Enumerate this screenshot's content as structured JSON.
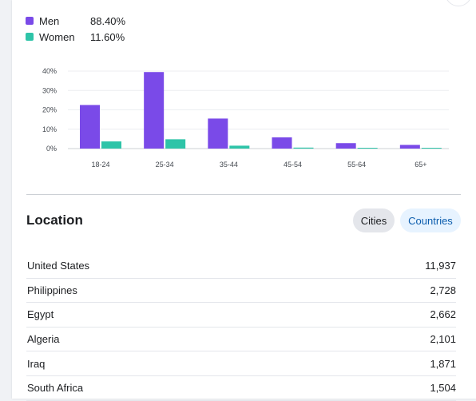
{
  "legend": {
    "items": [
      {
        "label": "Men",
        "value": "88.40%",
        "color": "#7a4ae8"
      },
      {
        "label": "Women",
        "value": "11.60%",
        "color": "#2ec4a8"
      }
    ]
  },
  "chart_data": {
    "type": "bar",
    "categories": [
      "18-24",
      "25-34",
      "35-44",
      "45-54",
      "55-64",
      "65+"
    ],
    "series": [
      {
        "name": "Men",
        "values": [
          22.5,
          39.5,
          15.5,
          5.8,
          2.8,
          1.9
        ],
        "color": "#7a4ae8"
      },
      {
        "name": "Women",
        "values": [
          3.7,
          4.8,
          1.5,
          0.5,
          0.3,
          0.3
        ],
        "color": "#2ec4a8"
      }
    ],
    "yticks": [
      "0%",
      "10%",
      "20%",
      "30%",
      "40%"
    ],
    "ylim": [
      0,
      40
    ],
    "grid": true,
    "xlabel": "",
    "ylabel": ""
  },
  "location": {
    "title": "Location",
    "cities_label": "Cities",
    "countries_label": "Countries",
    "rows": [
      {
        "name": "United States",
        "value": "11,937"
      },
      {
        "name": "Philippines",
        "value": "2,728"
      },
      {
        "name": "Egypt",
        "value": "2,662"
      },
      {
        "name": "Algeria",
        "value": "2,101"
      },
      {
        "name": "Iraq",
        "value": "1,871"
      },
      {
        "name": "South Africa",
        "value": "1,504"
      }
    ]
  }
}
